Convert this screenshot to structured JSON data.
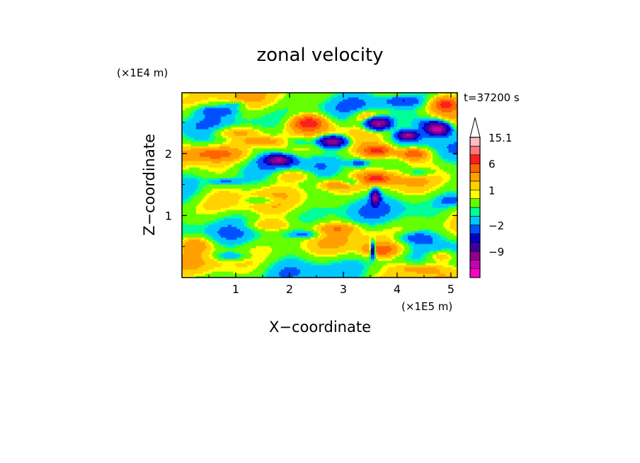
{
  "chart_data": {
    "type": "heatmap",
    "title": "zonal velocity",
    "xlabel": "X−coordinate",
    "ylabel": "Z−coordinate",
    "x_unit": "(×1E5 m)",
    "y_unit": "(×1E4 m)",
    "time_label": "t=37200 s",
    "xlim": [
      0,
      5.12
    ],
    "ylim": [
      0,
      2.98
    ],
    "x_ticks": [
      1,
      2,
      3,
      4,
      5
    ],
    "y_ticks": [
      1,
      2
    ],
    "x_tick_labels": [
      "1",
      "2",
      "3",
      "4",
      "5"
    ],
    "y_tick_labels": [
      "1",
      "2"
    ],
    "colorbar": {
      "labels": [
        "15.1",
        "6",
        "1",
        "−2",
        "−9"
      ],
      "label_levels": [
        15.1,
        6,
        1,
        -2,
        -9
      ],
      "levels": [
        -15,
        -12,
        -9,
        -6,
        -4,
        -2,
        -1,
        -0.5,
        0.5,
        1,
        2,
        4,
        6,
        9,
        12,
        15.1
      ],
      "colors": [
        "#ff00c8",
        "#c800b4",
        "#8c008c",
        "#3c00a0",
        "#0000c8",
        "#0050ff",
        "#00c8ff",
        "#00ff96",
        "#64ff00",
        "#ffff00",
        "#ffd200",
        "#ffa000",
        "#ff6400",
        "#ff1e1e",
        "#ff7878",
        "#ffbebe"
      ],
      "extend_max": true
    },
    "features": [
      {
        "x": 0.7,
        "z": 2.7,
        "value": -3,
        "sx": 0.4,
        "sz": 0.08
      },
      {
        "x": 1.0,
        "z": 2.35,
        "value": 3,
        "sx": 0.5,
        "sz": 0.1
      },
      {
        "x": 0.6,
        "z": 2.0,
        "value": 4,
        "sx": 0.5,
        "sz": 0.1
      },
      {
        "x": 1.5,
        "z": 2.2,
        "value": 3,
        "sx": 0.4,
        "sz": 0.08
      },
      {
        "x": 0.8,
        "z": 1.55,
        "value": -2.5,
        "sx": 0.3,
        "sz": 0.06
      },
      {
        "x": 0.25,
        "z": 0.55,
        "value": 3,
        "sx": 0.3,
        "sz": 0.12
      },
      {
        "x": 1.8,
        "z": 1.9,
        "value": -11,
        "sx": 0.25,
        "sz": 0.08
      },
      {
        "x": 2.2,
        "z": 2.2,
        "value": -3,
        "sx": 0.3,
        "sz": 0.1
      },
      {
        "x": 2.35,
        "z": 2.5,
        "value": 7,
        "sx": 0.3,
        "sz": 0.12
      },
      {
        "x": 2.1,
        "z": 1.65,
        "value": 3,
        "sx": 0.4,
        "sz": 0.1
      },
      {
        "x": 2.8,
        "z": 2.2,
        "value": -12,
        "sx": 0.25,
        "sz": 0.09
      },
      {
        "x": 2.85,
        "z": 1.5,
        "value": 3,
        "sx": 0.35,
        "sz": 0.08
      },
      {
        "x": 3.5,
        "z": 2.6,
        "value": 4,
        "sx": 0.3,
        "sz": 0.1
      },
      {
        "x": 3.65,
        "z": 2.5,
        "value": -14,
        "sx": 0.22,
        "sz": 0.1
      },
      {
        "x": 3.65,
        "z": 2.05,
        "value": 7,
        "sx": 0.3,
        "sz": 0.1
      },
      {
        "x": 3.6,
        "z": 1.6,
        "value": 6,
        "sx": 0.3,
        "sz": 0.09
      },
      {
        "x": 3.15,
        "z": 1.55,
        "value": -3,
        "sx": 0.2,
        "sz": 0.06
      },
      {
        "x": 3.6,
        "z": 1.3,
        "value": -11,
        "sx": 0.08,
        "sz": 0.12
      },
      {
        "x": 4.2,
        "z": 2.3,
        "value": -12,
        "sx": 0.18,
        "sz": 0.07
      },
      {
        "x": 4.3,
        "z": 2.0,
        "value": 7,
        "sx": 0.3,
        "sz": 0.1
      },
      {
        "x": 4.4,
        "z": 1.7,
        "value": -3,
        "sx": 0.3,
        "sz": 0.08
      },
      {
        "x": 4.6,
        "z": 2.5,
        "value": -3,
        "sx": 0.3,
        "sz": 0.1
      },
      {
        "x": 4.75,
        "z": 2.4,
        "value": -14,
        "sx": 0.22,
        "sz": 0.1
      },
      {
        "x": 4.9,
        "z": 2.8,
        "value": 6,
        "sx": 0.25,
        "sz": 0.12
      },
      {
        "x": 4.1,
        "z": 2.85,
        "value": -3,
        "sx": 0.3,
        "sz": 0.07
      },
      {
        "x": 5.0,
        "z": 1.25,
        "value": -2.5,
        "sx": 0.2,
        "sz": 0.08
      },
      {
        "x": 3.7,
        "z": 0.45,
        "value": 5,
        "sx": 0.3,
        "sz": 0.1
      },
      {
        "x": 3.55,
        "z": 0.45,
        "value": -11,
        "sx": 0.05,
        "sz": 0.12
      },
      {
        "x": 4.3,
        "z": 0.65,
        "value": -3,
        "sx": 0.35,
        "sz": 0.1
      },
      {
        "x": 4.8,
        "z": 0.35,
        "value": 3,
        "sx": 0.3,
        "sz": 0.1
      },
      {
        "x": 4.4,
        "z": 0.15,
        "value": 3,
        "sx": 0.4,
        "sz": 0.08
      },
      {
        "x": 2.9,
        "z": 0.8,
        "value": 3,
        "sx": 0.35,
        "sz": 0.08
      },
      {
        "x": 1.6,
        "z": 0.85,
        "value": 2.5,
        "sx": 0.5,
        "sz": 0.1
      },
      {
        "x": 2.3,
        "z": 0.7,
        "value": -2.5,
        "sx": 0.3,
        "sz": 0.06
      },
      {
        "x": 0.9,
        "z": 0.35,
        "value": -2.5,
        "sx": 0.35,
        "sz": 0.07
      },
      {
        "x": 1.5,
        "z": 1.25,
        "value": -2.5,
        "sx": 0.3,
        "sz": 0.06
      },
      {
        "x": 3.3,
        "z": 1.85,
        "value": -3,
        "sx": 0.2,
        "sz": 0.06
      },
      {
        "x": 1.0,
        "z": 2.8,
        "value": -2.5,
        "sx": 0.2,
        "sz": 0.05
      }
    ]
  }
}
